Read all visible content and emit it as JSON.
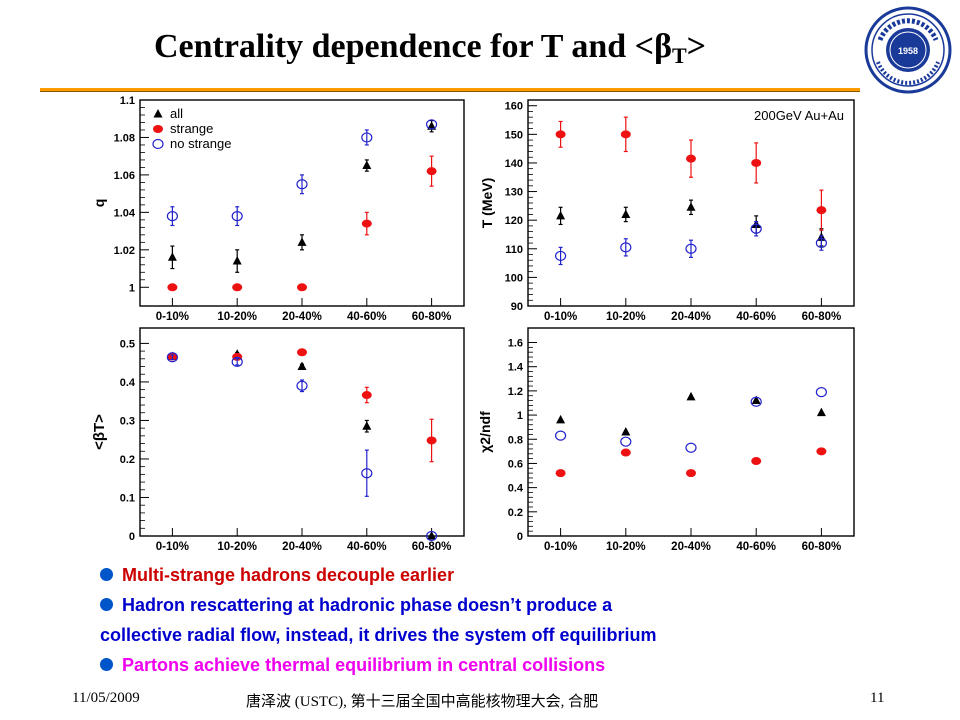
{
  "slide": {
    "title_main": "Centrality dependence for T and <",
    "title_beta": "β",
    "title_sub": "T",
    "title_end": ">",
    "footer_left": "11/05/2009",
    "footer_center": "唐泽波 (USTC), 第十三届全国中高能核物理大会, 合肥",
    "footer_right": "11"
  },
  "colors": {
    "all": "#000000",
    "strange": "#ee1111",
    "no_strange": "#2222cc",
    "bullet_red": "#cc0000",
    "bullet_blue": "#0000cc",
    "bullet_pink": "#ee00ee",
    "accent_rule": "#ff9a00"
  },
  "bullets": [
    {
      "text": "Multi-strange hadrons decouple earlier",
      "color": "#cc0000"
    },
    {
      "text": "Hadron rescattering at hadronic phase doesn’t produce a",
      "color": "#0000cc"
    },
    {
      "text": "collective radial flow, instead, it drives the system off equilibrium",
      "color": "#0000cc"
    },
    {
      "text": "Partons achieve thermal equilibrium in central collisions",
      "color": "#ee00ee"
    }
  ],
  "chart_data": [
    {
      "type": "scatter",
      "id": "q",
      "ylabel": "q",
      "categories": [
        "0-10%",
        "10-20%",
        "20-40%",
        "40-60%",
        "60-80%"
      ],
      "ylim": [
        0.99,
        1.1
      ],
      "yticks": [
        1,
        1.02,
        1.04,
        1.06,
        1.08,
        1.1
      ],
      "legend": {
        "placement": "top-left",
        "entries": [
          "all",
          "strange",
          "no strange"
        ]
      },
      "series": [
        {
          "name": "all",
          "marker": "triangle",
          "values": [
            1.016,
            1.014,
            1.024,
            1.065,
            1.086
          ],
          "errors": [
            0.006,
            0.006,
            0.004,
            0.003,
            0.003
          ]
        },
        {
          "name": "strange",
          "marker": "filled-circle",
          "values": [
            1.0,
            1.0,
            1.0,
            1.034,
            1.062
          ],
          "errors": [
            0.0,
            0.0,
            0.0,
            0.006,
            0.008
          ]
        },
        {
          "name": "no strange",
          "marker": "open-circle",
          "values": [
            1.038,
            1.038,
            1.055,
            1.08,
            1.087
          ],
          "errors": [
            0.005,
            0.005,
            0.005,
            0.004,
            0.0
          ]
        }
      ]
    },
    {
      "type": "scatter",
      "id": "T",
      "ylabel": "T (MeV)",
      "annotation": "200GeV Au+Au",
      "categories": [
        "0-10%",
        "10-20%",
        "20-40%",
        "40-60%",
        "60-80%"
      ],
      "ylim": [
        90,
        162
      ],
      "yticks": [
        90,
        100,
        110,
        120,
        130,
        140,
        150,
        160
      ],
      "series": [
        {
          "name": "all",
          "marker": "triangle",
          "values": [
            121.5,
            122,
            124.5,
            118.5,
            114
          ],
          "errors": [
            3,
            2.5,
            2.5,
            3,
            3
          ]
        },
        {
          "name": "strange",
          "marker": "filled-circle",
          "values": [
            150,
            150,
            141.5,
            140,
            123.5
          ],
          "errors": [
            4.5,
            6,
            6.5,
            7,
            7
          ]
        },
        {
          "name": "no strange",
          "marker": "open-circle",
          "values": [
            107.5,
            110.5,
            110,
            117,
            112
          ],
          "errors": [
            3,
            3,
            3,
            2.5,
            2.5
          ]
        }
      ]
    },
    {
      "type": "scatter",
      "id": "betaT",
      "ylabel": "<βT>",
      "categories": [
        "0-10%",
        "10-20%",
        "20-40%",
        "40-60%",
        "60-80%"
      ],
      "ylim": [
        0,
        0.54
      ],
      "yticks": [
        0,
        0.1,
        0.2,
        0.3,
        0.4,
        0.5
      ],
      "series": [
        {
          "name": "all",
          "marker": "triangle",
          "values": [
            0.466,
            0.472,
            0.44,
            0.285,
            0.0
          ],
          "errors": [
            0.004,
            0.004,
            0.006,
            0.015,
            0.0
          ]
        },
        {
          "name": "strange",
          "marker": "filled-circle",
          "values": [
            0.466,
            0.465,
            0.477,
            0.366,
            0.248
          ],
          "errors": [
            0.004,
            0.004,
            0.004,
            0.02,
            0.055
          ]
        },
        {
          "name": "no strange",
          "marker": "open-circle",
          "values": [
            0.464,
            0.452,
            0.39,
            0.163,
            0.0
          ],
          "errors": [
            0.006,
            0.008,
            0.015,
            0.06,
            0.0
          ]
        }
      ]
    },
    {
      "type": "scatter",
      "id": "chi2",
      "ylabel": "χ2/ndf",
      "categories": [
        "0-10%",
        "10-20%",
        "20-40%",
        "40-60%",
        "60-80%"
      ],
      "ylim": [
        0,
        1.72
      ],
      "yticks": [
        0,
        0.2,
        0.4,
        0.6,
        0.8,
        1,
        1.2,
        1.4,
        1.6
      ],
      "series": [
        {
          "name": "all",
          "marker": "triangle",
          "values": [
            0.96,
            0.86,
            1.15,
            1.12,
            1.02
          ]
        },
        {
          "name": "strange",
          "marker": "filled-circle",
          "values": [
            0.52,
            0.69,
            0.52,
            0.62,
            0.7
          ]
        },
        {
          "name": "no strange",
          "marker": "open-circle",
          "values": [
            0.83,
            0.78,
            0.73,
            1.11,
            1.19
          ]
        }
      ]
    }
  ]
}
